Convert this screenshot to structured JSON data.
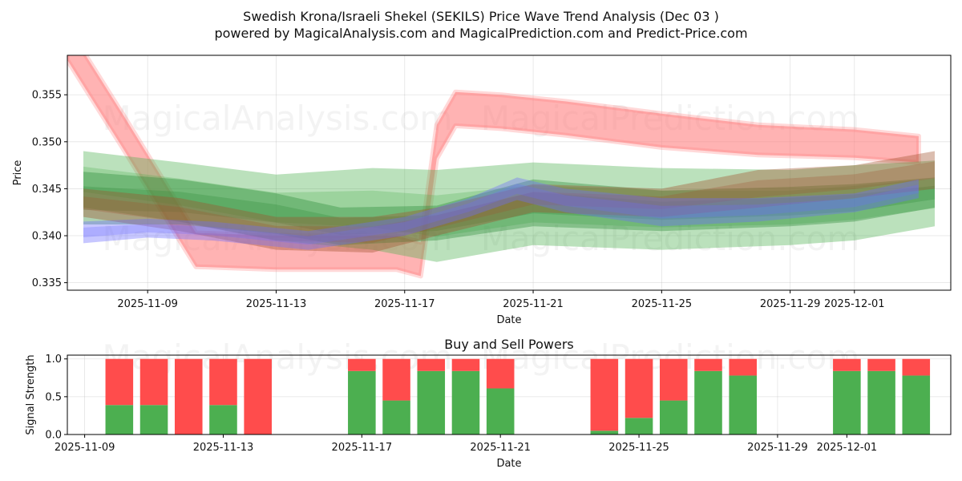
{
  "chart_data": [
    {
      "type": "area",
      "title_line1": "Swedish Krona/Israeli Shekel (SEKILS) Price Wave Trend Analysis (Dec 03 )",
      "title_line2": "powered by MagicalAnalysis.com and MagicalPrediction.com and Predict-Price.com",
      "xlabel": "Date",
      "ylabel": "Price",
      "ylim": [
        0.3342,
        0.3592
      ],
      "yticks": [
        0.335,
        0.34,
        0.345,
        0.35,
        0.355
      ],
      "ytick_labels": [
        "0.335",
        "0.340",
        "0.345",
        "0.350",
        "0.355"
      ],
      "xticks": [
        "2025-11-09",
        "2025-11-13",
        "2025-11-17",
        "2025-11-21",
        "2025-11-25",
        "2025-11-29",
        "2025-12-01"
      ],
      "xtick_labels": [
        "2025-11-09",
        "2025-11-13",
        "2025-11-17",
        "2025-11-21",
        "2025-11-25",
        "2025-11-29",
        "2025-12-01"
      ],
      "xlim": [
        "2025-11-06T12:00",
        "2025-12-04T00:00"
      ],
      "watermarks": [
        "MagicalAnalysis.com",
        "MagicalPrediction.com",
        "MagicalAnalysis.com",
        "MagicalPrediction.com"
      ],
      "series": [
        {
          "name": "red-wave",
          "color": "#ff8080",
          "x": [
            "2025-11-06T12:00",
            "2025-11-08T06:00",
            "2025-11-10T12:00",
            "2025-11-13T00:00",
            "2025-11-15T00:00",
            "2025-11-16T18:00",
            "2025-11-17T12:00",
            "2025-11-18T00:00",
            "2025-11-18T14:00",
            "2025-11-20T00:00",
            "2025-11-22T00:00",
            "2025-11-25T00:00",
            "2025-11-28T00:00",
            "2025-12-01T00:00",
            "2025-12-03T00:00"
          ],
          "center": [
            0.3605,
            0.351,
            0.3385,
            0.3382,
            0.3382,
            0.3382,
            0.3375,
            0.35,
            0.3535,
            0.3532,
            0.3525,
            0.3512,
            0.3502,
            0.3498,
            0.3492
          ],
          "half_width": [
            0.0018,
            0.0018,
            0.0018,
            0.0018,
            0.0018,
            0.0018,
            0.0018,
            0.0018,
            0.0018,
            0.0018,
            0.0018,
            0.0018,
            0.0016,
            0.0015,
            0.0014
          ]
        },
        {
          "name": "green-band-wide",
          "color": "#4caf50",
          "x": [
            "2025-11-07T00:00",
            "2025-11-10T00:00",
            "2025-11-13T00:00",
            "2025-11-16T00:00",
            "2025-11-18T00:00",
            "2025-11-21T00:00",
            "2025-11-25T00:00",
            "2025-11-29T00:00",
            "2025-12-01T00:00",
            "2025-12-03T12:00"
          ],
          "upper": [
            0.349,
            0.3478,
            0.3465,
            0.3472,
            0.347,
            0.3478,
            0.3472,
            0.347,
            0.3475,
            0.348
          ],
          "lower": [
            0.343,
            0.3415,
            0.3395,
            0.3385,
            0.3372,
            0.339,
            0.3385,
            0.339,
            0.3395,
            0.341
          ]
        },
        {
          "name": "green-band-core",
          "color": "#2e8b3a",
          "x": [
            "2025-11-07T00:00",
            "2025-11-10T00:00",
            "2025-11-13T00:00",
            "2025-11-15T00:00",
            "2025-11-18T00:00",
            "2025-11-21T00:00",
            "2025-11-25T00:00",
            "2025-11-29T00:00",
            "2025-12-01T00:00",
            "2025-12-03T12:00"
          ],
          "upper": [
            0.3468,
            0.346,
            0.3445,
            0.343,
            0.3432,
            0.346,
            0.3448,
            0.3452,
            0.3455,
            0.3462
          ],
          "lower": [
            0.3412,
            0.3412,
            0.3402,
            0.339,
            0.3395,
            0.341,
            0.3405,
            0.341,
            0.3415,
            0.343
          ]
        },
        {
          "name": "brown-band",
          "color": "#a0522d",
          "x": [
            "2025-11-07T00:00",
            "2025-11-10T00:00",
            "2025-11-13T00:00",
            "2025-11-16T00:00",
            "2025-11-18T00:00",
            "2025-11-21T00:00",
            "2025-11-25T00:00",
            "2025-11-28T00:00",
            "2025-12-01T00:00",
            "2025-12-03T12:00"
          ],
          "upper": [
            0.345,
            0.344,
            0.342,
            0.342,
            0.343,
            0.3455,
            0.345,
            0.347,
            0.3475,
            0.349
          ],
          "lower": [
            0.342,
            0.3405,
            0.3385,
            0.3382,
            0.34,
            0.3425,
            0.342,
            0.343,
            0.344,
            0.345
          ]
        },
        {
          "name": "blue-band",
          "color": "#6b6bff",
          "x": [
            "2025-11-07T00:00",
            "2025-11-09T00:00",
            "2025-11-11T00:00",
            "2025-11-14T00:00",
            "2025-11-17T00:00",
            "2025-11-19T00:00",
            "2025-11-20T12:00",
            "2025-11-22T00:00",
            "2025-11-25T00:00",
            "2025-11-28T00:00",
            "2025-12-01T00:00",
            "2025-12-03T00:00"
          ],
          "upper": [
            0.3415,
            0.3418,
            0.3415,
            0.3405,
            0.342,
            0.344,
            0.3462,
            0.345,
            0.344,
            0.344,
            0.3445,
            0.346
          ],
          "lower": [
            0.3392,
            0.3398,
            0.3395,
            0.3385,
            0.34,
            0.342,
            0.3438,
            0.3425,
            0.341,
            0.3415,
            0.3425,
            0.344
          ]
        }
      ]
    },
    {
      "type": "bar",
      "title": "Buy and Sell Powers",
      "xlabel": "Date",
      "ylabel": "Signal Strength",
      "ylim": [
        0,
        1.05
      ],
      "yticks": [
        0,
        0.5,
        1.0
      ],
      "ytick_labels": [
        "0.0",
        "0.5",
        "1.0"
      ],
      "xticks": [
        "2025-11-09",
        "2025-11-13",
        "2025-11-17",
        "2025-11-21",
        "2025-11-25",
        "2025-11-29",
        "2025-12-01"
      ],
      "xtick_labels": [
        "2025-11-09",
        "2025-11-13",
        "2025-11-17",
        "2025-11-21",
        "2025-11-25",
        "2025-11-29",
        "2025-12-01"
      ],
      "xlim": [
        "2025-11-08T12:00",
        "2025-12-04T00:00"
      ],
      "watermarks": [
        "MagicalAnalysis.com",
        "MagicalPrediction.com"
      ],
      "buy_color": "#4caf50",
      "sell_color": "#ff4c4c",
      "series": [
        {
          "name": "Buy",
          "values": [
            0.39,
            0.39,
            0.0,
            0.39,
            0.0,
            0.84,
            0.45,
            0.84,
            0.84,
            0.61,
            0.05,
            0.22,
            0.45,
            0.84,
            0.78,
            0.84,
            0.84,
            0.78
          ]
        },
        {
          "name": "Sell",
          "values": [
            0.61,
            0.61,
            1.0,
            0.61,
            1.0,
            0.16,
            0.55,
            0.16,
            0.16,
            0.39,
            0.95,
            0.78,
            0.55,
            0.16,
            0.22,
            0.16,
            0.16,
            0.22
          ]
        }
      ],
      "categories": [
        "2025-11-10",
        "2025-11-11",
        "2025-11-12",
        "2025-11-13",
        "2025-11-14",
        "2025-11-17",
        "2025-11-18",
        "2025-11-19",
        "2025-11-20",
        "2025-11-21",
        "2025-11-24",
        "2025-11-25",
        "2025-11-26",
        "2025-11-27",
        "2025-11-28",
        "2025-12-01",
        "2025-12-02",
        "2025-12-03"
      ]
    }
  ]
}
